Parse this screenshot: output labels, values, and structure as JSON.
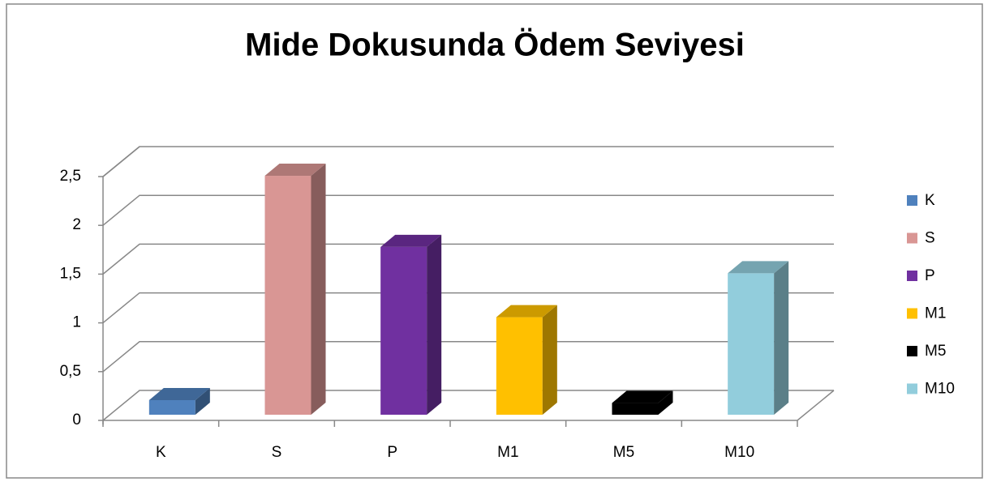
{
  "chart_data": {
    "type": "bar3d",
    "title": "Mide Dokusunda Ödem Seviyesi",
    "categories": [
      "K",
      "S",
      "P",
      "M1",
      "M5",
      "M10"
    ],
    "values": [
      0.15,
      2.45,
      1.72,
      1.0,
      0.12,
      1.45
    ],
    "colors": [
      "#4f81bd",
      "#d99694",
      "#7030a0",
      "#ffc000",
      "#000000",
      "#92cddc"
    ],
    "ylim": [
      0,
      2.5
    ],
    "yticks": [
      0,
      {
        "value": 0.5,
        "label": "0,5"
      },
      1,
      {
        "value": 1.5,
        "label": "1,5"
      },
      2,
      {
        "value": 2.5,
        "label": "2,5"
      }
    ],
    "grid": true,
    "legend": "right"
  }
}
